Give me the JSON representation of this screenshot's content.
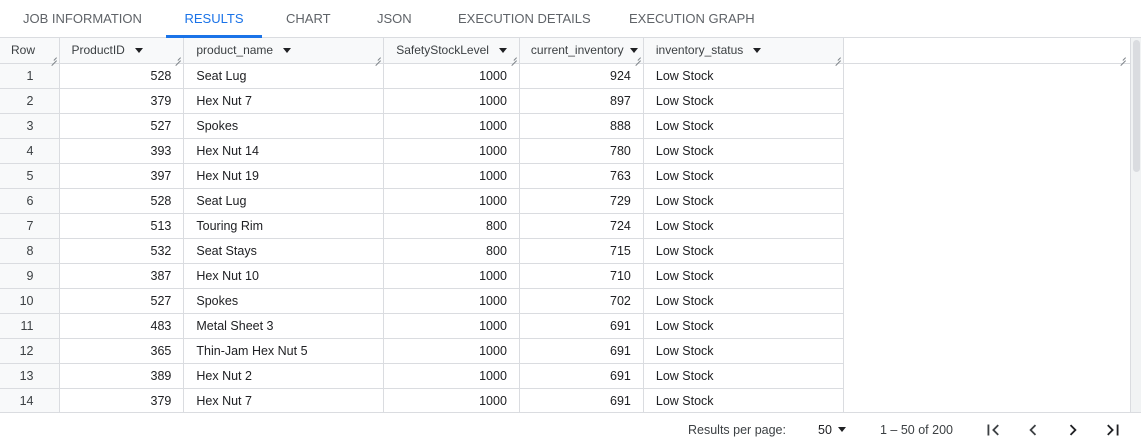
{
  "tabs": [
    {
      "label": "JOB INFORMATION",
      "active": false
    },
    {
      "label": "RESULTS",
      "active": true
    },
    {
      "label": "CHART",
      "active": false
    },
    {
      "label": "JSON",
      "active": false
    },
    {
      "label": "EXECUTION DETAILS",
      "active": false
    },
    {
      "label": "EXECUTION GRAPH",
      "active": false
    }
  ],
  "table": {
    "columns": [
      "Row",
      "ProductID",
      "product_name",
      "SafetyStockLevel",
      "current_inventory",
      "inventory_status"
    ],
    "rows": [
      [
        "1",
        "528",
        "Seat Lug",
        "1000",
        "924",
        "Low Stock"
      ],
      [
        "2",
        "379",
        "Hex Nut 7",
        "1000",
        "897",
        "Low Stock"
      ],
      [
        "3",
        "527",
        "Spokes",
        "1000",
        "888",
        "Low Stock"
      ],
      [
        "4",
        "393",
        "Hex Nut 14",
        "1000",
        "780",
        "Low Stock"
      ],
      [
        "5",
        "397",
        "Hex Nut 19",
        "1000",
        "763",
        "Low Stock"
      ],
      [
        "6",
        "528",
        "Seat Lug",
        "1000",
        "729",
        "Low Stock"
      ],
      [
        "7",
        "513",
        "Touring Rim",
        "800",
        "724",
        "Low Stock"
      ],
      [
        "8",
        "532",
        "Seat Stays",
        "800",
        "715",
        "Low Stock"
      ],
      [
        "9",
        "387",
        "Hex Nut 10",
        "1000",
        "710",
        "Low Stock"
      ],
      [
        "10",
        "527",
        "Spokes",
        "1000",
        "702",
        "Low Stock"
      ],
      [
        "11",
        "483",
        "Metal Sheet 3",
        "1000",
        "691",
        "Low Stock"
      ],
      [
        "12",
        "365",
        "Thin-Jam Hex Nut 5",
        "1000",
        "691",
        "Low Stock"
      ],
      [
        "13",
        "389",
        "Hex Nut 2",
        "1000",
        "691",
        "Low Stock"
      ],
      [
        "14",
        "379",
        "Hex Nut 7",
        "1000",
        "691",
        "Low Stock"
      ]
    ]
  },
  "footer": {
    "results_per_page_label": "Results per page:",
    "results_per_page_value": "50",
    "range_text": "1 – 50 of 200"
  },
  "icons": {
    "first_page": "first-page-icon",
    "prev_page": "chevron-left-icon",
    "next_page": "chevron-right-icon",
    "last_page": "last-page-icon"
  },
  "colors": {
    "accent": "#1a73e8",
    "border": "#dadce0",
    "header_bg": "#f8f9fa"
  }
}
